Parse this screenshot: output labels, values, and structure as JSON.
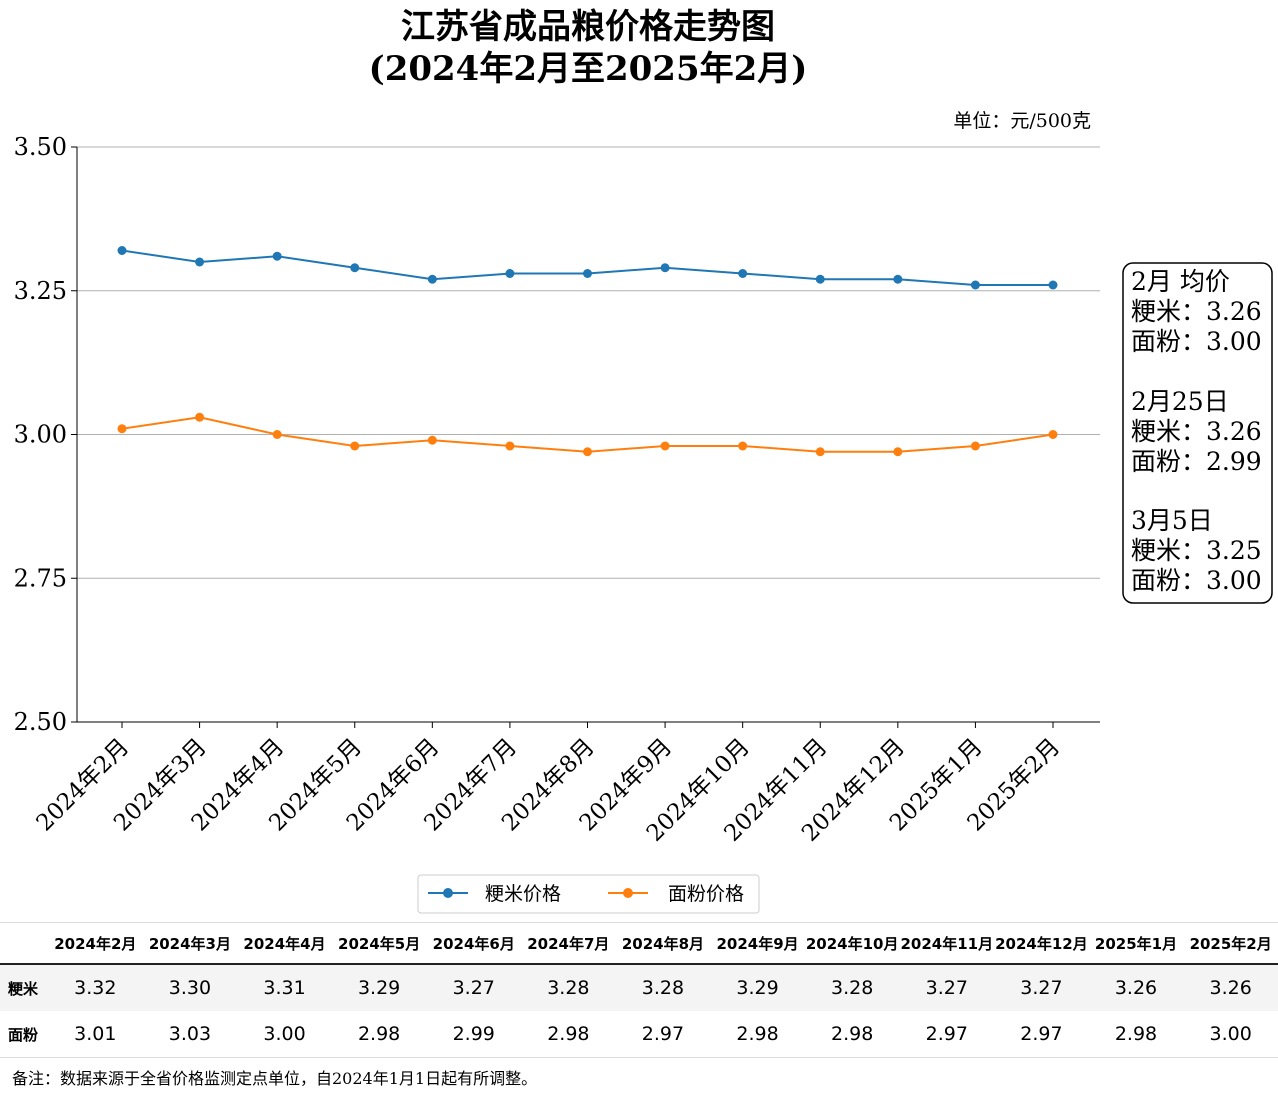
{
  "chart_data": {
    "type": "line",
    "title": "江苏省成品粮价格走势图",
    "subtitle": "(2024年2月至2025年2月)",
    "unit": "单位：元/500克",
    "categories": [
      "2024年2月",
      "2024年3月",
      "2024年4月",
      "2024年5月",
      "2024年6月",
      "2024年7月",
      "2024年8月",
      "2024年9月",
      "2024年10月",
      "2024年11月",
      "2024年12月",
      "2025年1月",
      "2025年2月"
    ],
    "series": [
      {
        "name": "粳米价格",
        "color": "#1f77b4",
        "values": [
          3.32,
          3.3,
          3.31,
          3.29,
          3.27,
          3.28,
          3.28,
          3.29,
          3.28,
          3.27,
          3.27,
          3.26,
          3.26
        ]
      },
      {
        "name": "面粉价格",
        "color": "#ff7f0e",
        "values": [
          3.01,
          3.03,
          3.0,
          2.98,
          2.99,
          2.98,
          2.97,
          2.98,
          2.98,
          2.97,
          2.97,
          2.98,
          3.0
        ]
      }
    ],
    "ylim": [
      2.5,
      3.5
    ],
    "yticks": [
      "2.50",
      "2.75",
      "3.00",
      "3.25",
      "3.50"
    ],
    "grid": "horizontal",
    "legend_position": "bottom-center"
  },
  "side_note": [
    "2月 均价",
    "粳米：3.26",
    "面粉：3.00",
    "2月25日",
    "粳米：3.26",
    "面粉：2.99",
    "3月5日",
    "粳米：3.25",
    "面粉：3.00"
  ],
  "table": {
    "columns": [
      "2024年2月",
      "2024年3月",
      "2024年4月",
      "2024年5月",
      "2024年6月",
      "2024年7月",
      "2024年8月",
      "2024年9月",
      "2024年10月",
      "2024年11月",
      "2024年12月",
      "2025年1月",
      "2025年2月"
    ],
    "rows": [
      {
        "label": "粳米",
        "values": [
          "3.32",
          "3.30",
          "3.31",
          "3.29",
          "3.27",
          "3.28",
          "3.28",
          "3.29",
          "3.28",
          "3.27",
          "3.27",
          "3.26",
          "3.26"
        ]
      },
      {
        "label": "面粉",
        "values": [
          "3.01",
          "3.03",
          "3.00",
          "2.98",
          "2.99",
          "2.98",
          "2.97",
          "2.98",
          "2.98",
          "2.97",
          "2.97",
          "2.98",
          "3.00"
        ]
      }
    ]
  },
  "footnote": "备注：数据来源于全省价格监测定点单位，自2024年1月1日起有所调整。"
}
